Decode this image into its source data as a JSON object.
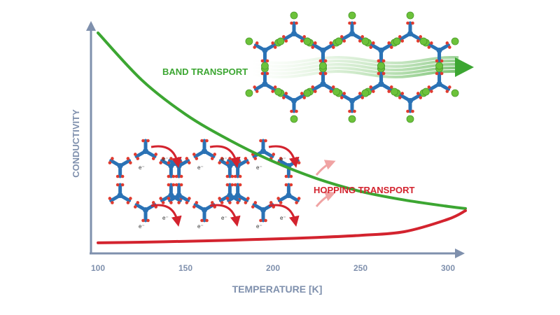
{
  "chart_data": {
    "type": "line",
    "xlabel": "TEMPERATURE [K]",
    "ylabel": "CONDUCTIVITY",
    "x_ticks": [
      100,
      150,
      200,
      250,
      300
    ],
    "xlim": [
      100,
      310
    ],
    "y_ticks": [],
    "grid": false,
    "series": [
      {
        "name": "BAND TRANSPORT",
        "color": "#3ca632",
        "x": [
          100,
          125,
          150,
          175,
          200,
          225,
          250,
          275,
          300,
          310
        ],
        "y": [
          1.0,
          0.78,
          0.62,
          0.5,
          0.4,
          0.32,
          0.26,
          0.22,
          0.19,
          0.18
        ]
      },
      {
        "name": "HOPPING TRANSPORT",
        "color": "#d3232e",
        "x": [
          100,
          125,
          150,
          175,
          200,
          225,
          250,
          275,
          300,
          310
        ],
        "y": [
          0.02,
          0.023,
          0.027,
          0.032,
          0.038,
          0.045,
          0.055,
          0.072,
          0.13,
          0.17
        ]
      }
    ],
    "annotations": [
      "BAND TRANSPORT",
      "HOPPING TRANSPORT"
    ]
  },
  "diagram": {
    "electron_label": "e⁻",
    "colors": {
      "node": "#2a72b5",
      "oxygen": "#e03b2f",
      "carrier": "#6cc23a",
      "arrow": "#d3232e",
      "axis": "#7f90ad"
    }
  }
}
